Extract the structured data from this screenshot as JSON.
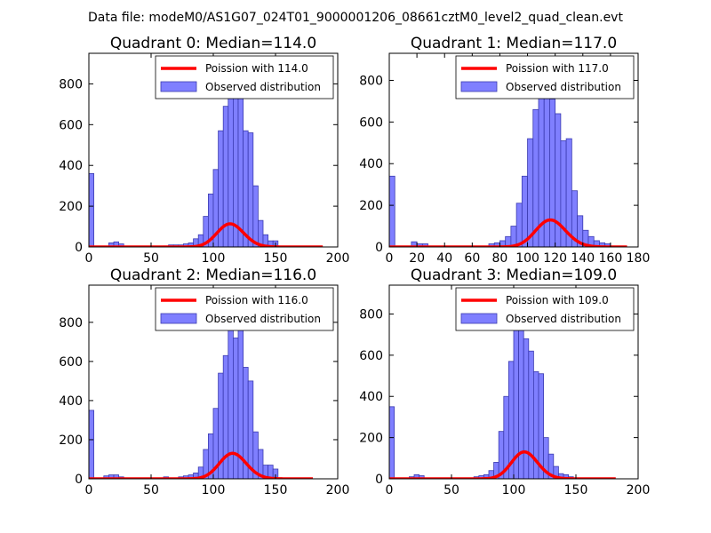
{
  "suptitle": "Data file: modeM0/AS1G07_024T01_9000001206_08661cztM0_level2_quad_clean.evt",
  "colors": {
    "hist_fill": "#7f7fff",
    "hist_edge": "#3b3bb0",
    "poisson": "#ff0000",
    "axes": "#000000"
  },
  "legend": {
    "observed": "Observed distribution"
  },
  "chart_data": [
    {
      "type": "bar",
      "title": "Quadrant 0: Median=114.0",
      "xlim": [
        0,
        200
      ],
      "ylim": [
        0,
        950
      ],
      "xticks": [
        0,
        50,
        100,
        150,
        200
      ],
      "yticks": [
        200,
        400,
        600,
        800
      ],
      "bin_width": 4,
      "bins": [
        {
          "x": 0,
          "y": 360
        },
        {
          "x": 16,
          "y": 20
        },
        {
          "x": 20,
          "y": 25
        },
        {
          "x": 24,
          "y": 15
        },
        {
          "x": 60,
          "y": 5
        },
        {
          "x": 64,
          "y": 10
        },
        {
          "x": 68,
          "y": 10
        },
        {
          "x": 72,
          "y": 10
        },
        {
          "x": 76,
          "y": 15
        },
        {
          "x": 80,
          "y": 20
        },
        {
          "x": 84,
          "y": 40
        },
        {
          "x": 88,
          "y": 60
        },
        {
          "x": 92,
          "y": 150
        },
        {
          "x": 96,
          "y": 260
        },
        {
          "x": 100,
          "y": 380
        },
        {
          "x": 104,
          "y": 570
        },
        {
          "x": 108,
          "y": 690
        },
        {
          "x": 112,
          "y": 770
        },
        {
          "x": 116,
          "y": 860
        },
        {
          "x": 120,
          "y": 790
        },
        {
          "x": 124,
          "y": 570
        },
        {
          "x": 128,
          "y": 560
        },
        {
          "x": 132,
          "y": 300
        },
        {
          "x": 136,
          "y": 130
        },
        {
          "x": 140,
          "y": 60
        },
        {
          "x": 144,
          "y": 30
        },
        {
          "x": 148,
          "y": 30
        }
      ],
      "poisson_label": "Poission with 114.0",
      "poisson_mean": 114.0,
      "poisson_scale": 3040,
      "poisson_range": [
        0,
        188
      ]
    },
    {
      "type": "bar",
      "title": "Quadrant 1: Median=117.0",
      "xlim": [
        0,
        180
      ],
      "ylim": [
        0,
        930
      ],
      "xticks": [
        0,
        20,
        40,
        60,
        80,
        100,
        120,
        140,
        160,
        180
      ],
      "yticks": [
        200,
        400,
        600,
        800
      ],
      "bin_width": 4,
      "bins": [
        {
          "x": 0,
          "y": 340
        },
        {
          "x": 16,
          "y": 25
        },
        {
          "x": 20,
          "y": 15
        },
        {
          "x": 24,
          "y": 15
        },
        {
          "x": 72,
          "y": 15
        },
        {
          "x": 76,
          "y": 20
        },
        {
          "x": 80,
          "y": 30
        },
        {
          "x": 84,
          "y": 50
        },
        {
          "x": 88,
          "y": 100
        },
        {
          "x": 92,
          "y": 210
        },
        {
          "x": 96,
          "y": 340
        },
        {
          "x": 100,
          "y": 520
        },
        {
          "x": 104,
          "y": 660
        },
        {
          "x": 108,
          "y": 790
        },
        {
          "x": 112,
          "y": 900
        },
        {
          "x": 116,
          "y": 710
        },
        {
          "x": 120,
          "y": 640
        },
        {
          "x": 124,
          "y": 510
        },
        {
          "x": 128,
          "y": 520
        },
        {
          "x": 132,
          "y": 270
        },
        {
          "x": 136,
          "y": 150
        },
        {
          "x": 140,
          "y": 80
        },
        {
          "x": 144,
          "y": 50
        },
        {
          "x": 148,
          "y": 30
        },
        {
          "x": 152,
          "y": 20
        },
        {
          "x": 156,
          "y": 15
        }
      ],
      "poisson_label": "Poission with 117.0",
      "poisson_mean": 117.0,
      "poisson_scale": 3520,
      "poisson_range": [
        0,
        172
      ]
    },
    {
      "type": "bar",
      "title": "Quadrant 2: Median=116.0",
      "xlim": [
        0,
        200
      ],
      "ylim": [
        0,
        990
      ],
      "xticks": [
        0,
        50,
        100,
        150,
        200
      ],
      "yticks": [
        200,
        400,
        600,
        800
      ],
      "bin_width": 4,
      "bins": [
        {
          "x": 0,
          "y": 350
        },
        {
          "x": 12,
          "y": 15
        },
        {
          "x": 16,
          "y": 20
        },
        {
          "x": 20,
          "y": 20
        },
        {
          "x": 24,
          "y": 10
        },
        {
          "x": 60,
          "y": 10
        },
        {
          "x": 72,
          "y": 10
        },
        {
          "x": 76,
          "y": 15
        },
        {
          "x": 80,
          "y": 20
        },
        {
          "x": 84,
          "y": 30
        },
        {
          "x": 88,
          "y": 60
        },
        {
          "x": 92,
          "y": 150
        },
        {
          "x": 96,
          "y": 230
        },
        {
          "x": 100,
          "y": 360
        },
        {
          "x": 104,
          "y": 540
        },
        {
          "x": 108,
          "y": 630
        },
        {
          "x": 112,
          "y": 780
        },
        {
          "x": 116,
          "y": 720
        },
        {
          "x": 120,
          "y": 930
        },
        {
          "x": 124,
          "y": 570
        },
        {
          "x": 128,
          "y": 500
        },
        {
          "x": 132,
          "y": 240
        },
        {
          "x": 136,
          "y": 150
        },
        {
          "x": 140,
          "y": 70
        },
        {
          "x": 144,
          "y": 70
        },
        {
          "x": 148,
          "y": 50
        }
      ],
      "poisson_label": "Poission with 116.0",
      "poisson_mean": 116.0,
      "poisson_scale": 3520,
      "poisson_range": [
        0,
        180
      ]
    },
    {
      "type": "bar",
      "title": "Quadrant 3: Median=109.0",
      "xlim": [
        0,
        200
      ],
      "ylim": [
        0,
        940
      ],
      "xticks": [
        0,
        50,
        100,
        150,
        200
      ],
      "yticks": [
        200,
        400,
        600,
        800
      ],
      "bin_width": 4,
      "bins": [
        {
          "x": 0,
          "y": 350
        },
        {
          "x": 16,
          "y": 10
        },
        {
          "x": 20,
          "y": 20
        },
        {
          "x": 24,
          "y": 15
        },
        {
          "x": 68,
          "y": 10
        },
        {
          "x": 72,
          "y": 15
        },
        {
          "x": 76,
          "y": 20
        },
        {
          "x": 80,
          "y": 40
        },
        {
          "x": 84,
          "y": 80
        },
        {
          "x": 88,
          "y": 230
        },
        {
          "x": 92,
          "y": 400
        },
        {
          "x": 96,
          "y": 570
        },
        {
          "x": 100,
          "y": 750
        },
        {
          "x": 104,
          "y": 870
        },
        {
          "x": 108,
          "y": 680
        },
        {
          "x": 112,
          "y": 620
        },
        {
          "x": 116,
          "y": 520
        },
        {
          "x": 120,
          "y": 510
        },
        {
          "x": 124,
          "y": 200
        },
        {
          "x": 128,
          "y": 120
        },
        {
          "x": 132,
          "y": 60
        },
        {
          "x": 136,
          "y": 25
        },
        {
          "x": 140,
          "y": 20
        },
        {
          "x": 144,
          "y": 10
        }
      ],
      "poisson_label": "Poission with 109.0",
      "poisson_mean": 109.0,
      "poisson_scale": 3420,
      "poisson_range": [
        0,
        182
      ]
    }
  ]
}
